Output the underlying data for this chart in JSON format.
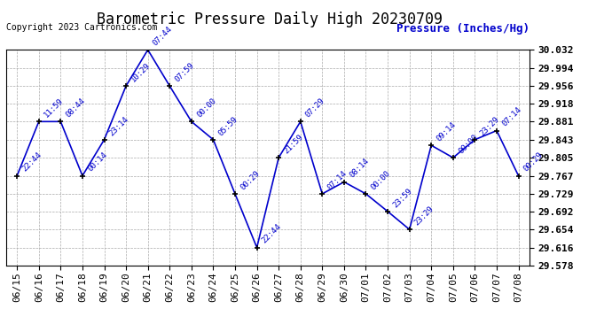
{
  "title": "Barometric Pressure Daily High 20230709",
  "ylabel": "Pressure (Inches/Hg)",
  "copyright": "Copyright 2023 Cartronics.com",
  "ylim": [
    29.578,
    30.032
  ],
  "yticks": [
    29.578,
    29.616,
    29.654,
    29.692,
    29.729,
    29.767,
    29.805,
    29.843,
    29.881,
    29.918,
    29.956,
    29.994,
    30.032
  ],
  "dates": [
    "06/15",
    "06/16",
    "06/17",
    "06/18",
    "06/19",
    "06/20",
    "06/21",
    "06/22",
    "06/23",
    "06/24",
    "06/25",
    "06/26",
    "06/27",
    "06/28",
    "06/29",
    "06/30",
    "07/01",
    "07/02",
    "07/03",
    "07/04",
    "07/05",
    "07/06",
    "07/07",
    "07/08"
  ],
  "values": [
    29.767,
    29.881,
    29.881,
    29.767,
    29.843,
    29.956,
    30.032,
    29.956,
    29.881,
    29.843,
    29.729,
    29.616,
    29.805,
    29.881,
    29.729,
    29.754,
    29.729,
    29.692,
    29.654,
    29.831,
    29.805,
    29.843,
    29.862,
    29.767
  ],
  "annotations": [
    "22:44",
    "11:59",
    "08:44",
    "00:14",
    "23:14",
    "10:29",
    "07:44",
    "07:59",
    "00:00",
    "05:59",
    "00:29",
    "22:44",
    "21:59",
    "07:29",
    "07:14",
    "08:14",
    "00:00",
    "23:59",
    "23:29",
    "09:14",
    "00:00",
    "23:29",
    "07:14",
    "00:29"
  ],
  "line_color": "#0000cc",
  "marker_color": "#000000",
  "annotation_color": "#0000cc",
  "grid_color": "#aaaaaa",
  "bg_color": "#ffffff",
  "title_fontsize": 12,
  "ylabel_fontsize": 9,
  "annotation_fontsize": 6.5,
  "tick_fontsize": 8,
  "copyright_fontsize": 7
}
